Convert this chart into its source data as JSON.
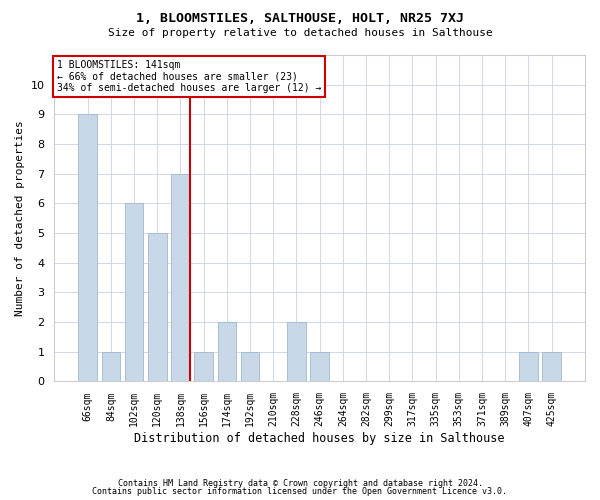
{
  "title": "1, BLOOMSTILES, SALTHOUSE, HOLT, NR25 7XJ",
  "subtitle": "Size of property relative to detached houses in Salthouse",
  "xlabel": "Distribution of detached houses by size in Salthouse",
  "ylabel": "Number of detached properties",
  "categories": [
    "66sqm",
    "84sqm",
    "102sqm",
    "120sqm",
    "138sqm",
    "156sqm",
    "174sqm",
    "192sqm",
    "210sqm",
    "228sqm",
    "246sqm",
    "264sqm",
    "282sqm",
    "299sqm",
    "317sqm",
    "335sqm",
    "353sqm",
    "371sqm",
    "389sqm",
    "407sqm",
    "425sqm"
  ],
  "values": [
    9,
    1,
    6,
    5,
    7,
    1,
    2,
    1,
    0,
    2,
    1,
    0,
    0,
    0,
    0,
    0,
    0,
    0,
    0,
    1,
    1
  ],
  "bar_color": "#c8d8e8",
  "bar_edgecolor": "#a0b8d0",
  "property_line_index": 4,
  "property_value": "141sqm",
  "annotation_title": "1 BLOOMSTILES: 141sqm",
  "annotation_line1": "← 66% of detached houses are smaller (23)",
  "annotation_line2": "34% of semi-detached houses are larger (12) →",
  "vline_color": "#cc0000",
  "annotation_box_edgecolor": "#cc0000",
  "ylim": [
    0,
    11
  ],
  "yticks": [
    0,
    1,
    2,
    3,
    4,
    5,
    6,
    7,
    8,
    9,
    10,
    11
  ],
  "grid_color": "#d0d8e8",
  "background_color": "#ffffff",
  "footer_line1": "Contains HM Land Registry data © Crown copyright and database right 2024.",
  "footer_line2": "Contains public sector information licensed under the Open Government Licence v3.0."
}
